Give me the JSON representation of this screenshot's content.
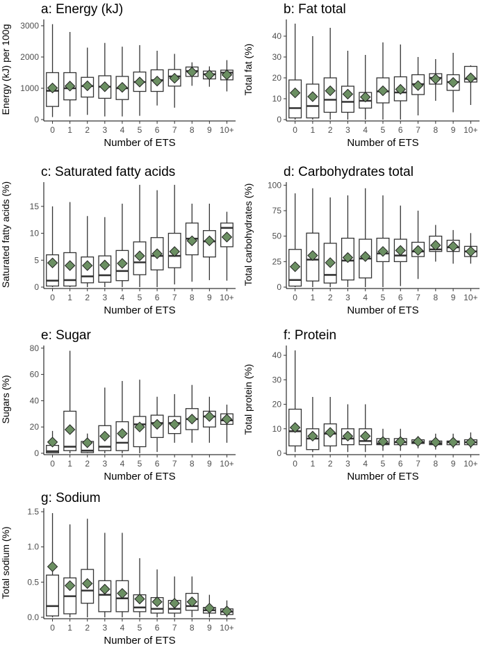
{
  "figure": {
    "mean_marker_color": "#6b8f62",
    "box_color": "#333333"
  },
  "chart_data": [
    {
      "type": "boxplot",
      "title": "a: Energy (kJ)",
      "ylabel": "Energy (kJ) per 100g",
      "xlabel": "Number of ETS",
      "categories": [
        "0",
        "1",
        "2",
        "3",
        "4",
        "5",
        "6",
        "7",
        "8",
        "9",
        "10+"
      ],
      "ylim": [
        0,
        3200
      ],
      "yticks": [
        0,
        1000,
        2000,
        3000
      ],
      "boxes": [
        {
          "min": 80,
          "q1": 420,
          "median": 920,
          "q3": 1500,
          "max": 3050,
          "mean": 1010
        },
        {
          "min": 100,
          "q1": 630,
          "median": 1000,
          "q3": 1500,
          "max": 2800,
          "mean": 1070
        },
        {
          "min": 150,
          "q1": 720,
          "median": 1070,
          "q3": 1350,
          "max": 2300,
          "mean": 1080
        },
        {
          "min": 100,
          "q1": 680,
          "median": 1050,
          "q3": 1400,
          "max": 2450,
          "mean": 1050
        },
        {
          "min": 100,
          "q1": 640,
          "median": 1000,
          "q3": 1380,
          "max": 2330,
          "mean": 1030
        },
        {
          "min": 120,
          "q1": 900,
          "median": 1200,
          "q3": 1520,
          "max": 2380,
          "mean": 1200
        },
        {
          "min": 450,
          "q1": 900,
          "median": 1260,
          "q3": 1590,
          "max": 2200,
          "mean": 1230
        },
        {
          "min": 380,
          "q1": 1070,
          "median": 1380,
          "q3": 1600,
          "max": 2100,
          "mean": 1320
        },
        {
          "min": 1080,
          "q1": 1380,
          "median": 1550,
          "q3": 1680,
          "max": 1830,
          "mean": 1520
        },
        {
          "min": 1050,
          "q1": 1300,
          "median": 1450,
          "q3": 1550,
          "max": 1700,
          "mean": 1430
        },
        {
          "min": 900,
          "q1": 1270,
          "median": 1500,
          "q3": 1580,
          "max": 1900,
          "mean": 1430
        }
      ]
    },
    {
      "type": "boxplot",
      "title": "b: Fat total",
      "ylabel": "Total fat (%)",
      "xlabel": "Number of ETS",
      "categories": [
        "0",
        "1",
        "2",
        "3",
        "4",
        "5",
        "6",
        "7",
        "8",
        "9",
        "10+"
      ],
      "ylim": [
        0,
        48
      ],
      "yticks": [
        0,
        10,
        20,
        30,
        40
      ],
      "boxes": [
        {
          "min": 0,
          "q1": 0.8,
          "median": 5.5,
          "q3": 19,
          "max": 46,
          "mean": 12.8
        },
        {
          "min": 0,
          "q1": 0.8,
          "median": 6.5,
          "q3": 17,
          "max": 40,
          "mean": 11
        },
        {
          "min": 0,
          "q1": 3.5,
          "median": 9.5,
          "q3": 20,
          "max": 44,
          "mean": 13.8
        },
        {
          "min": 0,
          "q1": 3.5,
          "median": 8.5,
          "q3": 16,
          "max": 33,
          "mean": 12.2
        },
        {
          "min": 0,
          "q1": 5.5,
          "median": 9,
          "q3": 13,
          "max": 31,
          "mean": 10.8
        },
        {
          "min": 0,
          "q1": 8,
          "median": 13.5,
          "q3": 20,
          "max": 37,
          "mean": 13.8
        },
        {
          "min": 0,
          "q1": 9,
          "median": 13,
          "q3": 20.5,
          "max": 36,
          "mean": 14.5
        },
        {
          "min": 2,
          "q1": 12,
          "median": 17,
          "q3": 21.5,
          "max": 30,
          "mean": 16.3
        },
        {
          "min": 9,
          "q1": 17,
          "median": 20,
          "q3": 22,
          "max": 29,
          "mean": 19.5
        },
        {
          "min": 3.5,
          "q1": 14,
          "median": 18,
          "q3": 21.5,
          "max": 32,
          "mean": 17.8
        },
        {
          "min": 7,
          "q1": 18,
          "median": 19.5,
          "q3": 25.5,
          "max": 26,
          "mean": 20
        }
      ]
    },
    {
      "type": "boxplot",
      "title": "c: Saturated fatty acids",
      "ylabel": "Saturated fatty acids (%)",
      "xlabel": "Number of ETS",
      "categories": [
        "0",
        "1",
        "2",
        "3",
        "4",
        "5",
        "6",
        "7",
        "8",
        "9",
        "10+"
      ],
      "ylim": [
        0,
        19.5
      ],
      "yticks": [
        0,
        5,
        10,
        15
      ],
      "boxes": [
        {
          "min": 0,
          "q1": 0.2,
          "median": 1.2,
          "q3": 6,
          "max": 15,
          "mean": 4.5
        },
        {
          "min": 0,
          "q1": 0.2,
          "median": 1.3,
          "q3": 6.4,
          "max": 15.8,
          "mean": 4
        },
        {
          "min": 0,
          "q1": 0.8,
          "median": 2,
          "q3": 5.6,
          "max": 13.2,
          "mean": 4
        },
        {
          "min": 0,
          "q1": 0.9,
          "median": 2.2,
          "q3": 5.8,
          "max": 13,
          "mean": 4.1
        },
        {
          "min": 0,
          "q1": 1.2,
          "median": 3,
          "q3": 6.8,
          "max": 15.5,
          "mean": 4.4
        },
        {
          "min": 0,
          "q1": 2.3,
          "median": 4.6,
          "q3": 8.4,
          "max": 19,
          "mean": 5.8
        },
        {
          "min": 0,
          "q1": 3.2,
          "median": 5.8,
          "q3": 9.2,
          "max": 18,
          "mean": 6.2
        },
        {
          "min": 0.5,
          "q1": 3.6,
          "median": 5.8,
          "q3": 10,
          "max": 19,
          "mean": 6.6
        },
        {
          "min": 1,
          "q1": 6,
          "median": 9,
          "q3": 11.9,
          "max": 15.5,
          "mean": 8.6
        },
        {
          "min": 1.3,
          "q1": 5.6,
          "median": 8.5,
          "q3": 10.5,
          "max": 15.5,
          "mean": 8.6
        },
        {
          "min": 1.2,
          "q1": 7.5,
          "median": 11,
          "q3": 11.9,
          "max": 14,
          "mean": 9.3
        }
      ]
    },
    {
      "type": "boxplot",
      "title": "d: Carbohydrates total",
      "ylabel": "Total carbohydrates (%)",
      "xlabel": "Number of ETS",
      "categories": [
        "0",
        "1",
        "2",
        "3",
        "4",
        "5",
        "6",
        "7",
        "8",
        "9",
        "10+"
      ],
      "ylim": [
        0,
        103
      ],
      "yticks": [
        0,
        25,
        50,
        75,
        100
      ],
      "boxes": [
        {
          "min": 0,
          "q1": 1,
          "median": 7,
          "q3": 37,
          "max": 92,
          "mean": 20
        },
        {
          "min": 0,
          "q1": 6,
          "median": 27,
          "q3": 53,
          "max": 97,
          "mean": 31
        },
        {
          "min": 0,
          "q1": 4,
          "median": 12,
          "q3": 43,
          "max": 88,
          "mean": 24
        },
        {
          "min": 0,
          "q1": 7,
          "median": 26,
          "q3": 48,
          "max": 90,
          "mean": 29
        },
        {
          "min": 0,
          "q1": 9,
          "median": 28,
          "q3": 47,
          "max": 97,
          "mean": 30
        },
        {
          "min": 0,
          "q1": 25,
          "median": 33,
          "q3": 48,
          "max": 90,
          "mean": 35
        },
        {
          "min": 1,
          "q1": 25,
          "median": 31,
          "q3": 47,
          "max": 80,
          "mean": 36
        },
        {
          "min": 8,
          "q1": 30,
          "median": 35,
          "q3": 44,
          "max": 75,
          "mean": 36
        },
        {
          "min": 25,
          "q1": 35,
          "median": 37,
          "q3": 50,
          "max": 61,
          "mean": 41
        },
        {
          "min": 23,
          "q1": 35,
          "median": 39,
          "q3": 46,
          "max": 56,
          "mean": 40
        },
        {
          "min": 23,
          "q1": 30,
          "median": 35,
          "q3": 40,
          "max": 53,
          "mean": 35
        }
      ]
    },
    {
      "type": "boxplot",
      "title": "e: Sugar",
      "ylabel": "Sugars (%)",
      "xlabel": "Number of ETS",
      "categories": [
        "0",
        "1",
        "2",
        "3",
        "4",
        "5",
        "6",
        "7",
        "8",
        "9",
        "10+"
      ],
      "ylim": [
        0,
        82
      ],
      "yticks": [
        0,
        20,
        40,
        60,
        80
      ],
      "boxes": [
        {
          "min": 0,
          "q1": 0.3,
          "median": 1.5,
          "q3": 6,
          "max": 17,
          "mean": 8.5
        },
        {
          "min": 0,
          "q1": 2,
          "median": 5,
          "q3": 32,
          "max": 78,
          "mean": 18
        },
        {
          "min": 0,
          "q1": 0.5,
          "median": 2,
          "q3": 9,
          "max": 15,
          "mean": 8
        },
        {
          "min": 0,
          "q1": 2,
          "median": 5,
          "q3": 21,
          "max": 50,
          "mean": 13
        },
        {
          "min": 0,
          "q1": 2,
          "median": 8,
          "q3": 24,
          "max": 55,
          "mean": 15
        },
        {
          "min": 0,
          "q1": 5,
          "median": 22,
          "q3": 28,
          "max": 56,
          "mean": 20
        },
        {
          "min": 1,
          "q1": 12,
          "median": 23,
          "q3": 29,
          "max": 43,
          "mean": 22
        },
        {
          "min": 8,
          "q1": 15,
          "median": 23,
          "q3": 28,
          "max": 45,
          "mean": 22
        },
        {
          "min": 8,
          "q1": 18,
          "median": 26,
          "q3": 34,
          "max": 52,
          "mean": 26
        },
        {
          "min": 8,
          "q1": 20,
          "median": 28,
          "q3": 32,
          "max": 43,
          "mean": 28
        },
        {
          "min": 8,
          "q1": 22,
          "median": 25,
          "q3": 30,
          "max": 37,
          "mean": 26
        }
      ]
    },
    {
      "type": "boxplot",
      "title": "f: Protein",
      "ylabel": "Total protein (%)",
      "xlabel": "Number of ETS",
      "categories": [
        "0",
        "1",
        "2",
        "3",
        "4",
        "5",
        "6",
        "7",
        "8",
        "9",
        "10+"
      ],
      "ylim": [
        0,
        44
      ],
      "yticks": [
        0,
        10,
        20,
        30,
        40
      ],
      "boxes": [
        {
          "min": 0.5,
          "q1": 3,
          "median": 9,
          "q3": 18,
          "max": 42,
          "mean": 10.5
        },
        {
          "min": 0.5,
          "q1": 1.5,
          "median": 6,
          "q3": 10,
          "max": 23,
          "mean": 7
        },
        {
          "min": 0.5,
          "q1": 3,
          "median": 8,
          "q3": 12,
          "max": 23,
          "mean": 8.5
        },
        {
          "min": 0.5,
          "q1": 3.5,
          "median": 6,
          "q3": 10,
          "max": 20,
          "mean": 7
        },
        {
          "min": 0.5,
          "q1": 3.5,
          "median": 5,
          "q3": 10,
          "max": 20,
          "mean": 7
        },
        {
          "min": 1,
          "q1": 3.5,
          "median": 4,
          "q3": 6,
          "max": 10,
          "mean": 4.8
        },
        {
          "min": 1,
          "q1": 3.5,
          "median": 4.5,
          "q3": 6,
          "max": 10,
          "mean": 4.8
        },
        {
          "min": 2,
          "q1": 4,
          "median": 4.5,
          "q3": 5.5,
          "max": 7,
          "mean": 4.8
        },
        {
          "min": 1.5,
          "q1": 3.5,
          "median": 4,
          "q3": 5,
          "max": 8,
          "mean": 4.5
        },
        {
          "min": 2,
          "q1": 3.5,
          "median": 4.5,
          "q3": 5,
          "max": 8,
          "mean": 4.5
        },
        {
          "min": 2,
          "q1": 3.5,
          "median": 4.5,
          "q3": 5.5,
          "max": 8.5,
          "mean": 4.5
        }
      ]
    },
    {
      "type": "boxplot",
      "title": "g: Sodium",
      "ylabel": "Total sodium (%)",
      "xlabel": "Number of ETS",
      "categories": [
        "0",
        "1",
        "2",
        "3",
        "4",
        "5",
        "6",
        "7",
        "8",
        "9",
        "10+"
      ],
      "ylim": [
        0,
        1.55
      ],
      "yticks": [
        0.0,
        0.5,
        1.0,
        1.5
      ],
      "ytick_labels": [
        "0.0",
        "0.5",
        "1.0",
        "1.5"
      ],
      "boxes": [
        {
          "min": 0,
          "q1": 0.02,
          "median": 0.16,
          "q3": 0.6,
          "max": 1.48,
          "mean": 0.72
        },
        {
          "min": 0,
          "q1": 0.05,
          "median": 0.3,
          "q3": 0.56,
          "max": 1.32,
          "mean": 0.45
        },
        {
          "min": 0,
          "q1": 0.2,
          "median": 0.38,
          "q3": 0.68,
          "max": 1.4,
          "mean": 0.48
        },
        {
          "min": 0,
          "q1": 0.08,
          "median": 0.32,
          "q3": 0.52,
          "max": 1.2,
          "mean": 0.4
        },
        {
          "min": 0,
          "q1": 0.08,
          "median": 0.27,
          "q3": 0.52,
          "max": 1.2,
          "mean": 0.34
        },
        {
          "min": 0,
          "q1": 0.08,
          "median": 0.14,
          "q3": 0.32,
          "max": 0.84,
          "mean": 0.26
        },
        {
          "min": 0,
          "q1": 0.06,
          "median": 0.12,
          "q3": 0.28,
          "max": 0.68,
          "mean": 0.22
        },
        {
          "min": 0,
          "q1": 0.06,
          "median": 0.12,
          "q3": 0.24,
          "max": 0.58,
          "mean": 0.2
        },
        {
          "min": 0,
          "q1": 0.1,
          "median": 0.16,
          "q3": 0.34,
          "max": 0.58,
          "mean": 0.22
        },
        {
          "min": 0,
          "q1": 0.06,
          "median": 0.1,
          "q3": 0.14,
          "max": 0.32,
          "mean": 0.13
        },
        {
          "min": 0,
          "q1": 0.04,
          "median": 0.08,
          "q3": 0.12,
          "max": 0.24,
          "mean": 0.09
        }
      ]
    }
  ]
}
